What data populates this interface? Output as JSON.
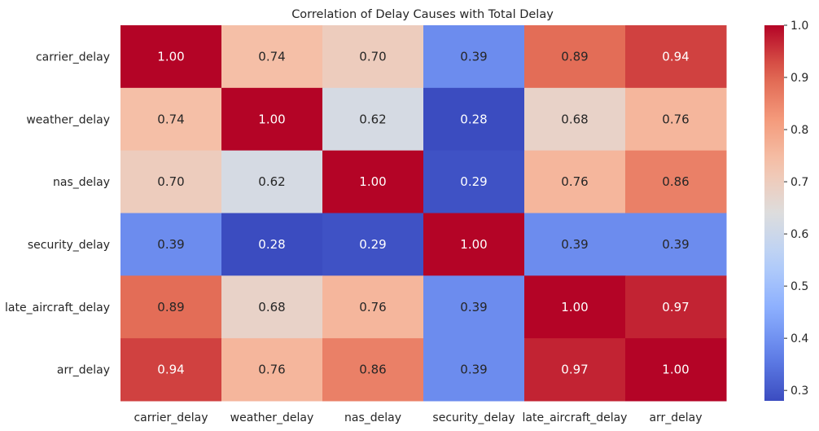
{
  "chart_data": {
    "type": "heatmap",
    "title": "Correlation of Delay Causes with Total Delay",
    "xlabel": "",
    "ylabel": "",
    "x_categories": [
      "carrier_delay",
      "weather_delay",
      "nas_delay",
      "security_delay",
      "late_aircraft_delay",
      "arr_delay"
    ],
    "y_categories": [
      "carrier_delay",
      "weather_delay",
      "nas_delay",
      "security_delay",
      "late_aircraft_delay",
      "arr_delay"
    ],
    "values": [
      [
        1.0,
        0.74,
        0.7,
        0.39,
        0.89,
        0.94
      ],
      [
        0.74,
        1.0,
        0.62,
        0.28,
        0.68,
        0.76
      ],
      [
        0.7,
        0.62,
        1.0,
        0.29,
        0.76,
        0.86
      ],
      [
        0.39,
        0.28,
        0.29,
        1.0,
        0.39,
        0.39
      ],
      [
        0.89,
        0.68,
        0.76,
        0.39,
        1.0,
        0.97
      ],
      [
        0.94,
        0.76,
        0.86,
        0.39,
        0.97,
        1.0
      ]
    ],
    "annotations": [
      [
        "1.00",
        "0.74",
        "0.70",
        "0.39",
        "0.89",
        "0.94"
      ],
      [
        "0.74",
        "1.00",
        "0.62",
        "0.28",
        "0.68",
        "0.76"
      ],
      [
        "0.70",
        "0.62",
        "1.00",
        "0.29",
        "0.76",
        "0.86"
      ],
      [
        "0.39",
        "0.28",
        "0.29",
        "1.00",
        "0.39",
        "0.39"
      ],
      [
        "0.89",
        "0.68",
        "0.76",
        "0.39",
        "1.00",
        "0.97"
      ],
      [
        "0.94",
        "0.76",
        "0.86",
        "0.39",
        "0.97",
        "1.00"
      ]
    ],
    "colormap": "coolwarm",
    "vmin": 0.28,
    "vmax": 1.0,
    "colorbar_ticks": [
      "0.3",
      "0.4",
      "0.5",
      "0.6",
      "0.7",
      "0.8",
      "0.9",
      "1.0"
    ],
    "grid": false
  }
}
